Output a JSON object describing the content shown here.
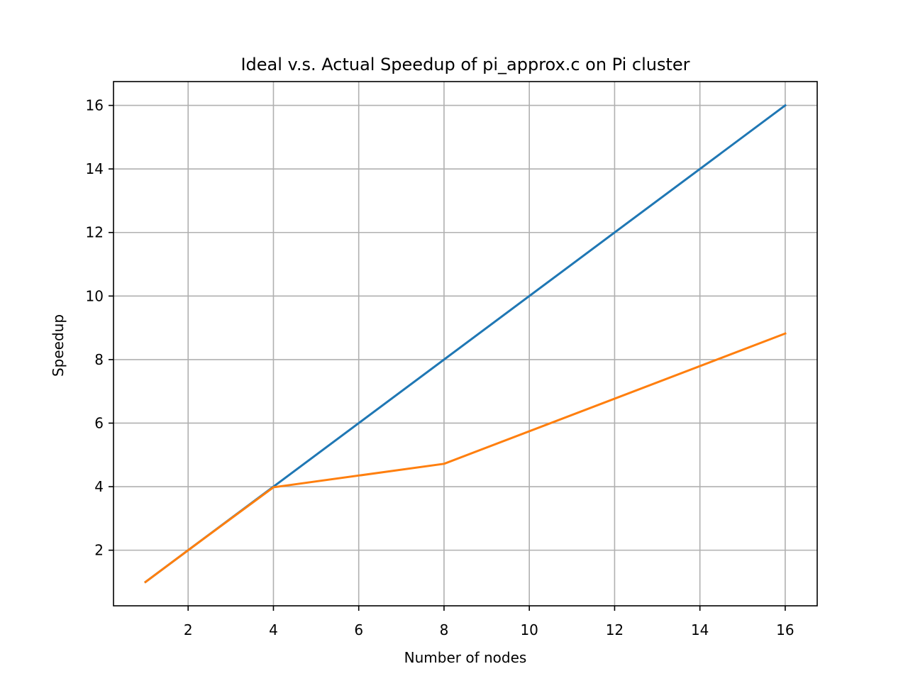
{
  "chart_data": {
    "type": "line",
    "title": "Ideal v.s. Actual Speedup of pi_approx.c on Pi cluster",
    "xlabel": "Number of nodes",
    "ylabel": "Speedup",
    "xlim": [
      0.25,
      16.75
    ],
    "ylim": [
      0.25,
      16.75
    ],
    "xticks": [
      2,
      4,
      6,
      8,
      10,
      12,
      14,
      16
    ],
    "yticks": [
      2,
      4,
      6,
      8,
      10,
      12,
      14,
      16
    ],
    "grid": true,
    "series": [
      {
        "color": "#1f77b4",
        "x": [
          1,
          2,
          4,
          8,
          16
        ],
        "y": [
          1,
          2,
          4,
          8,
          16
        ]
      },
      {
        "color": "#ff7f0e",
        "x": [
          1,
          2,
          4,
          8,
          16
        ],
        "y": [
          1,
          2,
          3.98,
          4.72,
          8.82
        ]
      }
    ]
  }
}
